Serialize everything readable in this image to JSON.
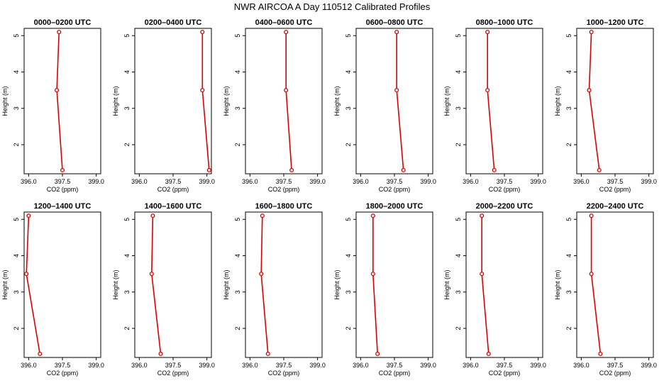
{
  "title": "NWR AIRCOA A  Day 110512  Calibrated Profiles",
  "colors": {
    "series": "#dd0000",
    "axis": "#000000",
    "background": "#ffffff"
  },
  "chart_data": [
    {
      "type": "line",
      "title": "0000–0200 UTC",
      "xlabel": "CO2 (ppm)",
      "ylabel": "Height (m)",
      "xlim": [
        395.8,
        399.2
      ],
      "ylim": [
        1.2,
        5.2
      ],
      "xticks": [
        396.0,
        397.5,
        399.0
      ],
      "xtick_labels": [
        "396.0",
        "397.5",
        "399.0"
      ],
      "yticks": [
        2,
        3,
        4,
        5
      ],
      "ytick_labels": [
        "2",
        "3",
        "4",
        "5"
      ],
      "grid": false,
      "x": [
        397.35,
        397.25,
        397.5
      ],
      "y": [
        5.1,
        3.5,
        1.3
      ]
    },
    {
      "type": "line",
      "title": "0200–0400 UTC",
      "xlabel": "CO2 (ppm)",
      "ylabel": "Height (m)",
      "xlim": [
        395.8,
        399.2
      ],
      "ylim": [
        1.2,
        5.2
      ],
      "xticks": [
        396.0,
        397.5,
        399.0
      ],
      "xtick_labels": [
        "396.0",
        "397.5",
        "399.0"
      ],
      "yticks": [
        2,
        3,
        4,
        5
      ],
      "ytick_labels": [
        "2",
        "3",
        "4",
        "5"
      ],
      "grid": false,
      "x": [
        398.8,
        398.8,
        399.1
      ],
      "y": [
        5.1,
        3.5,
        1.3
      ]
    },
    {
      "type": "line",
      "title": "0400–0600 UTC",
      "xlabel": "CO2 (ppm)",
      "ylabel": "Height (m)",
      "xlim": [
        395.8,
        399.2
      ],
      "ylim": [
        1.2,
        5.2
      ],
      "xticks": [
        396.0,
        397.5,
        399.0
      ],
      "xtick_labels": [
        "396.0",
        "397.5",
        "399.0"
      ],
      "yticks": [
        2,
        3,
        4,
        5
      ],
      "ytick_labels": [
        "2",
        "3",
        "4",
        "5"
      ],
      "grid": false,
      "x": [
        397.6,
        397.6,
        397.85
      ],
      "y": [
        5.1,
        3.5,
        1.3
      ]
    },
    {
      "type": "line",
      "title": "0600–0800 UTC",
      "xlabel": "CO2 (ppm)",
      "ylabel": "Height (m)",
      "xlim": [
        395.8,
        399.2
      ],
      "ylim": [
        1.2,
        5.2
      ],
      "xticks": [
        396.0,
        397.5,
        399.0
      ],
      "xtick_labels": [
        "396.0",
        "397.5",
        "399.0"
      ],
      "yticks": [
        2,
        3,
        4,
        5
      ],
      "ytick_labels": [
        "2",
        "3",
        "4",
        "5"
      ],
      "grid": false,
      "x": [
        397.6,
        397.6,
        397.9
      ],
      "y": [
        5.1,
        3.5,
        1.3
      ]
    },
    {
      "type": "line",
      "title": "0800–1000 UTC",
      "xlabel": "CO2 (ppm)",
      "ylabel": "Height (m)",
      "xlim": [
        395.8,
        399.2
      ],
      "ylim": [
        1.2,
        5.2
      ],
      "xticks": [
        396.0,
        397.5,
        399.0
      ],
      "xtick_labels": [
        "396.0",
        "397.5",
        "399.0"
      ],
      "yticks": [
        2,
        3,
        4,
        5
      ],
      "ytick_labels": [
        "2",
        "3",
        "4",
        "5"
      ],
      "grid": false,
      "x": [
        396.75,
        396.75,
        397.05
      ],
      "y": [
        5.1,
        3.5,
        1.3
      ]
    },
    {
      "type": "line",
      "title": "1000–1200 UTC",
      "xlabel": "CO2 (ppm)",
      "ylabel": "Height (m)",
      "xlim": [
        395.8,
        399.2
      ],
      "ylim": [
        1.2,
        5.2
      ],
      "xticks": [
        396.0,
        397.5,
        399.0
      ],
      "xtick_labels": [
        "396.0",
        "397.5",
        "399.0"
      ],
      "yticks": [
        2,
        3,
        4,
        5
      ],
      "ytick_labels": [
        "2",
        "3",
        "4",
        "5"
      ],
      "grid": false,
      "x": [
        396.45,
        396.35,
        396.8
      ],
      "y": [
        5.1,
        3.5,
        1.3
      ]
    },
    {
      "type": "line",
      "title": "1200–1400 UTC",
      "xlabel": "CO2 (ppm)",
      "ylabel": "Height (m)",
      "xlim": [
        395.8,
        399.2
      ],
      "ylim": [
        1.2,
        5.2
      ],
      "xticks": [
        396.0,
        397.5,
        399.0
      ],
      "xtick_labels": [
        "396.0",
        "397.5",
        "399.0"
      ],
      "yticks": [
        2,
        3,
        4,
        5
      ],
      "ytick_labels": [
        "2",
        "3",
        "4",
        "5"
      ],
      "grid": false,
      "x": [
        396.0,
        395.9,
        396.5
      ],
      "y": [
        5.1,
        3.5,
        1.3
      ]
    },
    {
      "type": "line",
      "title": "1400–1600 UTC",
      "xlabel": "CO2 (ppm)",
      "ylabel": "Height (m)",
      "xlim": [
        395.8,
        399.2
      ],
      "ylim": [
        1.2,
        5.2
      ],
      "xticks": [
        396.0,
        397.5,
        399.0
      ],
      "xtick_labels": [
        "396.0",
        "397.5",
        "399.0"
      ],
      "yticks": [
        2,
        3,
        4,
        5
      ],
      "ytick_labels": [
        "2",
        "3",
        "4",
        "5"
      ],
      "grid": false,
      "x": [
        396.6,
        396.55,
        396.95
      ],
      "y": [
        5.1,
        3.5,
        1.3
      ]
    },
    {
      "type": "line",
      "title": "1600–1800 UTC",
      "xlabel": "CO2 (ppm)",
      "ylabel": "Height (m)",
      "xlim": [
        395.8,
        399.2
      ],
      "ylim": [
        1.2,
        5.2
      ],
      "xticks": [
        396.0,
        397.5,
        399.0
      ],
      "xtick_labels": [
        "396.0",
        "397.5",
        "399.0"
      ],
      "yticks": [
        2,
        3,
        4,
        5
      ],
      "ytick_labels": [
        "2",
        "3",
        "4",
        "5"
      ],
      "grid": false,
      "x": [
        396.55,
        396.5,
        396.8
      ],
      "y": [
        5.1,
        3.5,
        1.3
      ]
    },
    {
      "type": "line",
      "title": "1800–2000 UTC",
      "xlabel": "CO2 (ppm)",
      "ylabel": "Height (m)",
      "xlim": [
        395.8,
        399.2
      ],
      "ylim": [
        1.2,
        5.2
      ],
      "xticks": [
        396.0,
        397.5,
        399.0
      ],
      "xtick_labels": [
        "396.0",
        "397.5",
        "399.0"
      ],
      "yticks": [
        2,
        3,
        4,
        5
      ],
      "ytick_labels": [
        "2",
        "3",
        "4",
        "5"
      ],
      "grid": false,
      "x": [
        396.55,
        396.55,
        396.75
      ],
      "y": [
        5.1,
        3.5,
        1.3
      ]
    },
    {
      "type": "line",
      "title": "2000–2200 UTC",
      "xlabel": "CO2 (ppm)",
      "ylabel": "Height (m)",
      "xlim": [
        395.8,
        399.2
      ],
      "ylim": [
        1.2,
        5.2
      ],
      "xticks": [
        396.0,
        397.5,
        399.0
      ],
      "xtick_labels": [
        "396.0",
        "397.5",
        "399.0"
      ],
      "yticks": [
        2,
        3,
        4,
        5
      ],
      "ytick_labels": [
        "2",
        "3",
        "4",
        "5"
      ],
      "grid": false,
      "x": [
        396.5,
        396.5,
        396.8
      ],
      "y": [
        5.1,
        3.5,
        1.3
      ]
    },
    {
      "type": "line",
      "title": "2200–2400 UTC",
      "xlabel": "CO2 (ppm)",
      "ylabel": "Height (m)",
      "xlim": [
        395.8,
        399.2
      ],
      "ylim": [
        1.2,
        5.2
      ],
      "xticks": [
        396.0,
        397.5,
        399.0
      ],
      "xtick_labels": [
        "396.0",
        "397.5",
        "399.0"
      ],
      "yticks": [
        2,
        3,
        4,
        5
      ],
      "ytick_labels": [
        "2",
        "3",
        "4",
        "5"
      ],
      "grid": false,
      "x": [
        396.45,
        396.45,
        396.85
      ],
      "y": [
        5.1,
        3.5,
        1.3
      ]
    }
  ]
}
